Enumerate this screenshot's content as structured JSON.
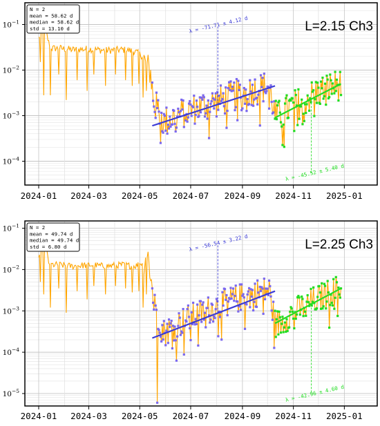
{
  "x_tick_labels": [
    "2024-01",
    "2024-03",
    "2024-05",
    "2024-07",
    "2024-09",
    "2024-11",
    "2025-01"
  ],
  "colors": {
    "background_series": "#ffa500",
    "segment1": "#3a3ad6",
    "segment1_points": "#7b68ee",
    "segment2": "#22dd22",
    "grid": "#d0d0d0"
  },
  "chart_data": [
    {
      "type": "line",
      "panel_label": "L=2.15 Ch3",
      "stats": [
        "N = 2",
        "mean = 58.62 d",
        "median = 58.62 d",
        "std = 13.10 d"
      ],
      "yscale": "log",
      "ylim": [
        3e-05,
        0.3
      ],
      "y_tick_labels": [
        "10^-1",
        "10^-2",
        "10^-3",
        "10^-4"
      ],
      "x_range": [
        "2024-01-01",
        "2025-01-04"
      ],
      "grid": true,
      "series": [
        {
          "role": "daily values (orange)",
          "base": [
            [
              0,
              0.05
            ],
            [
              3,
              0.07
            ],
            [
              8,
              0.08
            ],
            [
              12,
              0.04
            ],
            [
              16,
              0.03
            ],
            [
              25,
              0.03
            ],
            [
              40,
              0.028
            ],
            [
              60,
              0.029
            ],
            [
              80,
              0.027
            ],
            [
              100,
              0.028
            ],
            [
              115,
              0.026
            ],
            [
              125,
              0.02
            ],
            [
              128,
              0.012
            ],
            [
              131,
              0.011
            ],
            [
              134,
              0.009
            ],
            [
              136,
              0.004
            ],
            [
              138,
              0.002
            ],
            [
              141,
              0.0015
            ],
            [
              145,
              0.0012
            ],
            [
              150,
              0.0007
            ],
            [
              160,
              0.0009
            ],
            [
              175,
              0.0012
            ],
            [
              190,
              0.0015
            ],
            [
              205,
              0.0018
            ],
            [
              220,
              0.0022
            ],
            [
              235,
              0.0028
            ],
            [
              250,
              0.0033
            ],
            [
              265,
              0.004
            ],
            [
              276,
              0.0045
            ],
            [
              279,
              0.0025
            ],
            [
              283,
              0.001
            ],
            [
              290,
              0.001
            ],
            [
              300,
              0.0015
            ],
            [
              315,
              0.002
            ],
            [
              330,
              0.003
            ],
            [
              345,
              0.004
            ],
            [
              360,
              0.0048
            ]
          ],
          "dips": [
            [
              2,
              0.015
            ],
            [
              6,
              0.0028
            ],
            [
              14,
              0.0028
            ],
            [
              24,
              0.008
            ],
            [
              33,
              0.0022
            ],
            [
              46,
              0.006
            ],
            [
              58,
              0.0035
            ],
            [
              66,
              0.008
            ],
            [
              80,
              0.0045
            ],
            [
              92,
              0.008
            ],
            [
              104,
              0.006
            ],
            [
              112,
              0.0045
            ],
            [
              120,
              0.005
            ],
            [
              125,
              0.0025
            ],
            [
              129,
              0.0035
            ]
          ]
        },
        {
          "role": "fit segment 1",
          "x_start": "2024-05-16",
          "x_end": "2024-10-10",
          "y_start": 0.0006,
          "y_end": 0.0045,
          "decay_label": "λ = -71.71 ± 4.12 d"
        },
        {
          "role": "fit segment 2",
          "x_start": "2024-10-10",
          "x_end": "2024-12-28",
          "y_start": 0.0009,
          "y_end": 0.005,
          "decay_label": "λ = -45.52 ± 5.40 d"
        }
      ]
    },
    {
      "type": "line",
      "panel_label": "L=2.25 Ch3",
      "stats": [
        "N = 2",
        "mean = 49.74 d",
        "median = 49.74 d",
        "std = 6.80 d"
      ],
      "yscale": "log",
      "ylim": [
        5e-06,
        0.15
      ],
      "y_tick_labels": [
        "10^-1",
        "10^-2",
        "10^-3",
        "10^-4",
        "10^-5"
      ],
      "x_range": [
        "2024-01-01",
        "2025-01-04"
      ],
      "grid": true,
      "series": [
        {
          "role": "daily values (orange)",
          "base": [
            [
              0,
              0.02
            ],
            [
              3,
              0.03
            ],
            [
              8,
              0.04
            ],
            [
              12,
              0.015
            ],
            [
              16,
              0.013
            ],
            [
              25,
              0.013
            ],
            [
              40,
              0.012
            ],
            [
              60,
              0.013
            ],
            [
              80,
              0.012
            ],
            [
              100,
              0.013
            ],
            [
              115,
              0.012
            ],
            [
              125,
              0.015
            ],
            [
              128,
              0.02
            ],
            [
              131,
              0.02
            ],
            [
              134,
              0.008
            ],
            [
              136,
              0.003
            ],
            [
              138,
              0.0015
            ],
            [
              141,
              0.001
            ],
            [
              145,
              0.0006
            ],
            [
              150,
              0.0003
            ],
            [
              160,
              0.0004
            ],
            [
              175,
              0.0006
            ],
            [
              190,
              0.0008
            ],
            [
              205,
              0.0011
            ],
            [
              220,
              0.0015
            ],
            [
              235,
              0.0019
            ],
            [
              250,
              0.0024
            ],
            [
              265,
              0.0029
            ],
            [
              276,
              0.0032
            ],
            [
              279,
              0.0015
            ],
            [
              283,
              0.0005
            ],
            [
              290,
              0.0005
            ],
            [
              300,
              0.0008
            ],
            [
              315,
              0.0012
            ],
            [
              330,
              0.0018
            ],
            [
              345,
              0.0025
            ],
            [
              360,
              0.0035
            ]
          ],
          "dips": [
            [
              2,
              0.005
            ],
            [
              6,
              0.0025
            ],
            [
              14,
              0.0012
            ],
            [
              24,
              0.0035
            ],
            [
              33,
              0.0009
            ],
            [
              46,
              0.003
            ],
            [
              58,
              0.0019
            ],
            [
              66,
              0.004
            ],
            [
              80,
              0.0025
            ],
            [
              92,
              0.004
            ],
            [
              104,
              0.0035
            ],
            [
              112,
              0.0028
            ],
            [
              120,
              0.003
            ],
            [
              125,
              0.0012
            ],
            [
              129,
              0.0025
            ],
            [
              142,
              6e-06
            ]
          ]
        },
        {
          "role": "fit segment 1",
          "x_start": "2024-05-16",
          "x_end": "2024-10-10",
          "y_start": 0.00022,
          "y_end": 0.003,
          "decay_label": "λ = -56.54 ± 3.22 d"
        },
        {
          "role": "fit segment 2",
          "x_start": "2024-10-10",
          "x_end": "2024-12-28",
          "y_start": 0.0005,
          "y_end": 0.0035,
          "decay_label": "λ = -42.96 ± 4.60 d"
        }
      ]
    }
  ]
}
